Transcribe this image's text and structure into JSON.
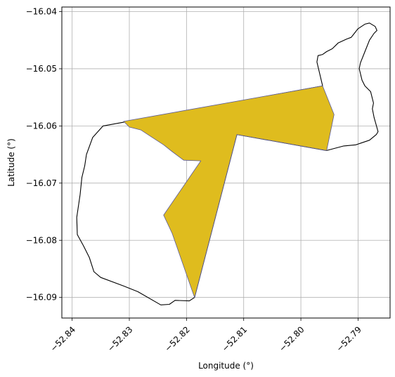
{
  "chart_data": {
    "type": "map",
    "title": "",
    "xlabel": "Longitude (°)",
    "ylabel": "Latitude (°)",
    "xlim": [
      -52.8418,
      -52.7844
    ],
    "ylim": [
      -16.0936,
      -16.0392
    ],
    "grid": true,
    "x_ticks": [
      {
        "value": -52.84,
        "label": "−52.84"
      },
      {
        "value": -52.83,
        "label": "−52.83"
      },
      {
        "value": -52.82,
        "label": "−52.82"
      },
      {
        "value": -52.81,
        "label": "−52.81"
      },
      {
        "value": -52.8,
        "label": "−52.80"
      },
      {
        "value": -52.79,
        "label": "−52.79"
      }
    ],
    "y_ticks": [
      {
        "value": -16.04,
        "label": "−16.04"
      },
      {
        "value": -16.05,
        "label": "−16.05"
      },
      {
        "value": -16.06,
        "label": "−16.06"
      },
      {
        "value": -16.07,
        "label": "−16.07"
      },
      {
        "value": -16.08,
        "label": "−16.08"
      },
      {
        "value": -16.09,
        "label": "−16.09"
      }
    ],
    "layers": [
      {
        "name": "boundary",
        "fill": "none",
        "stroke": "#000000",
        "coords": [
          [
            -52.8346,
            -16.06
          ],
          [
            -52.8364,
            -16.062
          ],
          [
            -52.8375,
            -16.065
          ],
          [
            -52.8378,
            -16.067
          ],
          [
            -52.8383,
            -16.069
          ],
          [
            -52.8386,
            -16.072
          ],
          [
            -52.8392,
            -16.076
          ],
          [
            -52.8391,
            -16.079
          ],
          [
            -52.838,
            -16.081
          ],
          [
            -52.837,
            -16.083
          ],
          [
            -52.8362,
            -16.0855
          ],
          [
            -52.835,
            -16.0865
          ],
          [
            -52.831,
            -16.088
          ],
          [
            -52.8285,
            -16.089
          ],
          [
            -52.8245,
            -16.0913
          ],
          [
            -52.823,
            -16.0912
          ],
          [
            -52.822,
            -16.0905
          ],
          [
            -52.8195,
            -16.0906
          ],
          [
            -52.8186,
            -16.09
          ],
          [
            -52.8112,
            -16.0615
          ],
          [
            -52.7955,
            -16.0643
          ],
          [
            -52.7925,
            -16.0635
          ],
          [
            -52.7904,
            -16.0633
          ],
          [
            -52.7895,
            -16.063
          ],
          [
            -52.788,
            -16.0625
          ],
          [
            -52.7868,
            -16.0615
          ],
          [
            -52.7865,
            -16.061
          ],
          [
            -52.7872,
            -16.0585
          ],
          [
            -52.7875,
            -16.057
          ],
          [
            -52.7873,
            -16.056
          ],
          [
            -52.7878,
            -16.054
          ],
          [
            -52.7888,
            -16.053
          ],
          [
            -52.7893,
            -16.052
          ],
          [
            -52.7898,
            -16.05
          ],
          [
            -52.7896,
            -16.049
          ],
          [
            -52.7888,
            -16.047
          ],
          [
            -52.788,
            -16.045
          ],
          [
            -52.7872,
            -16.0438
          ],
          [
            -52.7867,
            -16.0433
          ],
          [
            -52.787,
            -16.0426
          ],
          [
            -52.788,
            -16.042
          ],
          [
            -52.7888,
            -16.0422
          ],
          [
            -52.79,
            -16.043
          ],
          [
            -52.7908,
            -16.044
          ],
          [
            -52.7912,
            -16.0445
          ],
          [
            -52.792,
            -16.0448
          ],
          [
            -52.7935,
            -16.0455
          ],
          [
            -52.7945,
            -16.0465
          ],
          [
            -52.7955,
            -16.047
          ],
          [
            -52.7962,
            -16.0475
          ],
          [
            -52.797,
            -16.0477
          ],
          [
            -52.7972,
            -16.0488
          ],
          [
            -52.7962,
            -16.053
          ],
          [
            -52.8346,
            -16.06
          ]
        ]
      },
      {
        "name": "highlighted-area",
        "fill": "#dfbc1e",
        "stroke": "#5a5a9a",
        "coords": [
          [
            -52.831,
            -16.0592
          ],
          [
            -52.83,
            -16.0602
          ],
          [
            -52.828,
            -16.0607
          ],
          [
            -52.826,
            -16.062
          ],
          [
            -52.824,
            -16.0633
          ],
          [
            -52.8225,
            -16.0645
          ],
          [
            -52.8205,
            -16.066
          ],
          [
            -52.8175,
            -16.0661
          ],
          [
            -52.824,
            -16.0756
          ],
          [
            -52.8225,
            -16.0788
          ],
          [
            -52.8186,
            -16.09
          ],
          [
            -52.8112,
            -16.0615
          ],
          [
            -52.7955,
            -16.0643
          ],
          [
            -52.7942,
            -16.058
          ],
          [
            -52.7962,
            -16.053
          ],
          [
            -52.831,
            -16.0592
          ]
        ]
      }
    ]
  }
}
